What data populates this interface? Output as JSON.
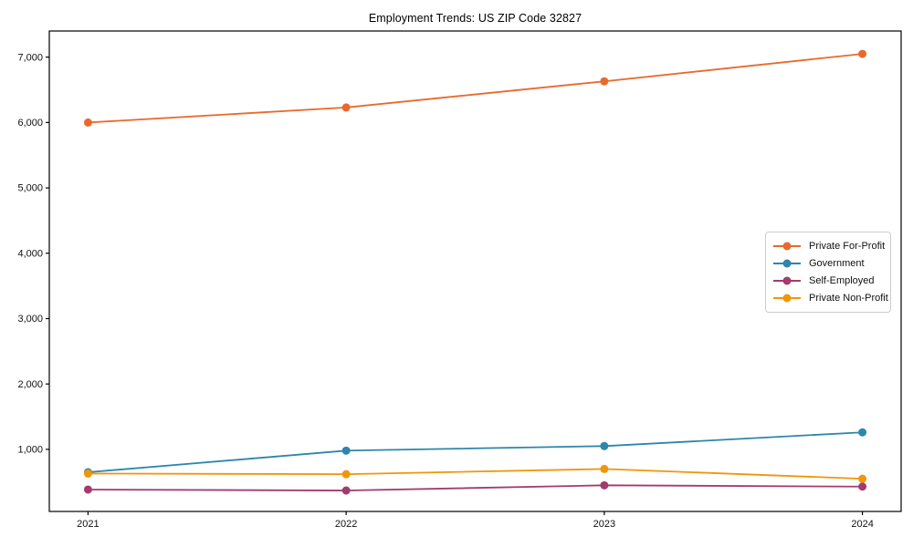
{
  "chart_data": {
    "type": "line",
    "title": "Employment Trends: US ZIP Code 32827",
    "categories": [
      "2021",
      "2022",
      "2023",
      "2024"
    ],
    "series": [
      {
        "name": "Private For-Profit",
        "color": "#E9692C",
        "values": [
          6000,
          6230,
          6630,
          7050
        ]
      },
      {
        "name": "Government",
        "color": "#2E86AB",
        "values": [
          650,
          980,
          1050,
          1260
        ]
      },
      {
        "name": "Self-Employed",
        "color": "#A33B6E",
        "values": [
          385,
          370,
          450,
          430
        ]
      },
      {
        "name": "Private Non-Profit",
        "color": "#F0960A",
        "values": [
          630,
          620,
          700,
          550
        ]
      }
    ],
    "xlabel": "",
    "ylabel": "",
    "xlim": [
      2020.85,
      2024.15
    ],
    "ylim": [
      50,
      7400
    ],
    "yticks": [
      1000,
      2000,
      3000,
      4000,
      5000,
      6000,
      7000
    ],
    "ytick_labels": [
      "1,000",
      "2,000",
      "3,000",
      "4,000",
      "5,000",
      "6,000",
      "7,000"
    ],
    "grid": false,
    "legend_position": "center-right",
    "marker": "circle",
    "axis_color": "#000000"
  }
}
